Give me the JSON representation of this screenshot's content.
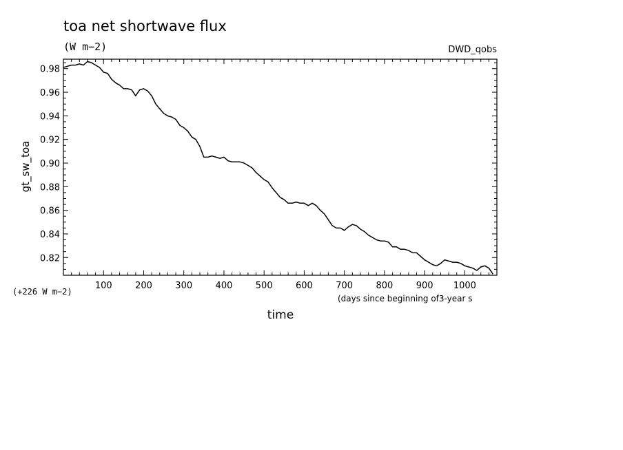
{
  "chart_data": {
    "type": "line",
    "title": "toa net shortwave flux",
    "units": "(W m−2)",
    "source": "DWD_qobs",
    "ylabel": "gt_sw_toa",
    "xlabel": "time",
    "x_note": "(days since beginning of3-year s",
    "y_offset_label": "(+226 W m−2)",
    "xlim": [
      0,
      1080
    ],
    "ylim": [
      0.805,
      0.988
    ],
    "xticks": [
      100,
      200,
      300,
      400,
      500,
      600,
      700,
      800,
      900,
      1000
    ],
    "yticks": [
      0.82,
      0.84,
      0.86,
      0.88,
      0.9,
      0.92,
      0.94,
      0.96,
      0.98
    ],
    "ytick_labels": [
      "0.82",
      "0.84",
      "0.86",
      "0.88",
      "0.90",
      "0.92",
      "0.94",
      "0.96",
      "0.98"
    ],
    "grid": false,
    "series": [
      {
        "color": "#000000",
        "x": [
          0,
          10,
          20,
          30,
          40,
          50,
          60,
          70,
          80,
          90,
          100,
          110,
          120,
          130,
          140,
          150,
          160,
          170,
          180,
          190,
          200,
          210,
          220,
          230,
          240,
          250,
          260,
          270,
          280,
          290,
          300,
          310,
          320,
          330,
          340,
          350,
          360,
          370,
          380,
          390,
          400,
          410,
          420,
          430,
          440,
          450,
          460,
          470,
          480,
          490,
          500,
          510,
          520,
          530,
          540,
          550,
          560,
          570,
          580,
          590,
          600,
          610,
          620,
          630,
          640,
          650,
          660,
          670,
          680,
          690,
          700,
          710,
          720,
          730,
          740,
          750,
          760,
          770,
          780,
          790,
          800,
          810,
          820,
          830,
          840,
          850,
          860,
          870,
          880,
          890,
          900,
          910,
          920,
          930,
          940,
          950,
          960,
          970,
          980,
          990,
          1000,
          1010,
          1020,
          1030,
          1040,
          1050,
          1060,
          1070
        ],
        "y": [
          0.981,
          0.982,
          0.983,
          0.983,
          0.984,
          0.983,
          0.986,
          0.985,
          0.983,
          0.981,
          0.977,
          0.976,
          0.971,
          0.968,
          0.966,
          0.963,
          0.963,
          0.962,
          0.957,
          0.962,
          0.963,
          0.961,
          0.957,
          0.95,
          0.946,
          0.942,
          0.94,
          0.939,
          0.937,
          0.932,
          0.93,
          0.927,
          0.922,
          0.92,
          0.914,
          0.905,
          0.905,
          0.906,
          0.905,
          0.904,
          0.905,
          0.902,
          0.901,
          0.901,
          0.901,
          0.9,
          0.898,
          0.896,
          0.892,
          0.889,
          0.886,
          0.884,
          0.879,
          0.875,
          0.871,
          0.869,
          0.866,
          0.866,
          0.867,
          0.866,
          0.866,
          0.864,
          0.866,
          0.864,
          0.86,
          0.857,
          0.852,
          0.847,
          0.845,
          0.845,
          0.843,
          0.846,
          0.848,
          0.847,
          0.844,
          0.842,
          0.839,
          0.837,
          0.835,
          0.834,
          0.834,
          0.833,
          0.829,
          0.829,
          0.827,
          0.827,
          0.826,
          0.824,
          0.824,
          0.821,
          0.818,
          0.816,
          0.814,
          0.813,
          0.815,
          0.818,
          0.817,
          0.816,
          0.816,
          0.815,
          0.813,
          0.812,
          0.811,
          0.809,
          0.812,
          0.813,
          0.811,
          0.806
        ]
      }
    ]
  }
}
